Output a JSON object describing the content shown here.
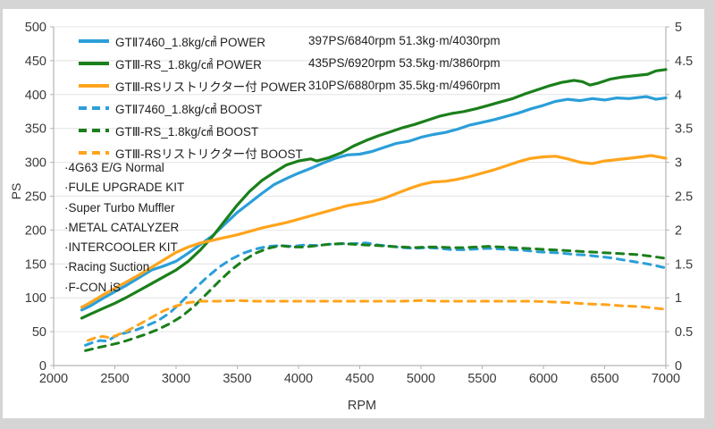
{
  "colors": {
    "background": "#d5d5d5",
    "panel": "#ffffff",
    "grid": "#e4e4e4",
    "axis": "#b3b3b3",
    "tick_text": "#3a3a3a",
    "blue": "#2b9fd8",
    "green": "#1b7f1b",
    "orange": "#ffa41d"
  },
  "chart_data": {
    "type": "line",
    "xlabel": "RPM",
    "ylabel_left": "PS",
    "x_range": [
      2000,
      7000
    ],
    "y_left_range": [
      0,
      500
    ],
    "y_right_range": [
      0,
      5
    ],
    "grid": "horizontal-only",
    "legend_position": "top-left-inside",
    "x_ticks": [
      "2000",
      "2500",
      "3000",
      "3500",
      "4000",
      "4500",
      "5000",
      "5500",
      "6000",
      "6500",
      "7000"
    ],
    "y_left_ticks": [
      "0",
      "50",
      "100",
      "150",
      "200",
      "250",
      "300",
      "350",
      "400",
      "450",
      "500"
    ],
    "y_right_ticks": [
      "0",
      "0.5",
      "1",
      "1.5",
      "2",
      "2.5",
      "3",
      "3.5",
      "4",
      "4.5",
      "5"
    ],
    "annotations": [
      "·4G63 E/G Normal",
      "·FULE UPGRADE KIT",
      "·Super Turbo Muffler",
      "·METAL CATALYZER",
      "·INTERCOOLER KIT",
      "·Racing Suction",
      "·F-CON iS"
    ],
    "series": [
      {
        "name": "gt2-7460-power",
        "label": "GTⅡ7460_1.8kg/㎠ POWER",
        "stats": "397PS/6840rpm 51.3kg·m/4030rpm",
        "color": "#2b9fd8",
        "style": "solid",
        "axis": "left",
        "points": [
          [
            2230,
            82
          ],
          [
            2300,
            88
          ],
          [
            2400,
            99
          ],
          [
            2500,
            109
          ],
          [
            2600,
            119
          ],
          [
            2700,
            130
          ],
          [
            2800,
            141
          ],
          [
            2900,
            147
          ],
          [
            3000,
            154
          ],
          [
            3100,
            166
          ],
          [
            3200,
            179
          ],
          [
            3300,
            192
          ],
          [
            3400,
            209
          ],
          [
            3500,
            226
          ],
          [
            3600,
            240
          ],
          [
            3700,
            254
          ],
          [
            3800,
            267
          ],
          [
            3900,
            276
          ],
          [
            4000,
            284
          ],
          [
            4100,
            291
          ],
          [
            4200,
            299
          ],
          [
            4300,
            306
          ],
          [
            4400,
            311
          ],
          [
            4500,
            312
          ],
          [
            4600,
            316
          ],
          [
            4700,
            322
          ],
          [
            4800,
            328
          ],
          [
            4900,
            331
          ],
          [
            5000,
            337
          ],
          [
            5100,
            341
          ],
          [
            5200,
            344
          ],
          [
            5300,
            349
          ],
          [
            5400,
            355
          ],
          [
            5500,
            359
          ],
          [
            5600,
            363
          ],
          [
            5700,
            368
          ],
          [
            5800,
            373
          ],
          [
            5900,
            379
          ],
          [
            6000,
            384
          ],
          [
            6100,
            390
          ],
          [
            6200,
            393
          ],
          [
            6300,
            391
          ],
          [
            6400,
            394
          ],
          [
            6500,
            392
          ],
          [
            6600,
            395
          ],
          [
            6700,
            394
          ],
          [
            6840,
            397
          ],
          [
            6920,
            393
          ],
          [
            7000,
            395
          ]
        ]
      },
      {
        "name": "gt3-rs-power",
        "label": "GTⅢ-RS_1.8kg/㎠ POWER",
        "stats": "435PS/6920rpm 53.5kg·m/3860rpm",
        "color": "#1b7f1b",
        "style": "solid",
        "axis": "left",
        "points": [
          [
            2230,
            70
          ],
          [
            2300,
            76
          ],
          [
            2400,
            84
          ],
          [
            2500,
            92
          ],
          [
            2600,
            101
          ],
          [
            2700,
            111
          ],
          [
            2800,
            121
          ],
          [
            2900,
            131
          ],
          [
            3000,
            141
          ],
          [
            3100,
            154
          ],
          [
            3200,
            171
          ],
          [
            3300,
            191
          ],
          [
            3400,
            214
          ],
          [
            3500,
            237
          ],
          [
            3600,
            257
          ],
          [
            3700,
            273
          ],
          [
            3800,
            285
          ],
          [
            3900,
            296
          ],
          [
            4000,
            302
          ],
          [
            4100,
            305
          ],
          [
            4150,
            302
          ],
          [
            4250,
            307
          ],
          [
            4350,
            314
          ],
          [
            4450,
            324
          ],
          [
            4550,
            332
          ],
          [
            4650,
            339
          ],
          [
            4750,
            345
          ],
          [
            4850,
            351
          ],
          [
            4950,
            356
          ],
          [
            5050,
            362
          ],
          [
            5150,
            368
          ],
          [
            5250,
            372
          ],
          [
            5350,
            375
          ],
          [
            5450,
            379
          ],
          [
            5550,
            384
          ],
          [
            5650,
            389
          ],
          [
            5750,
            394
          ],
          [
            5850,
            401
          ],
          [
            5950,
            407
          ],
          [
            6050,
            413
          ],
          [
            6150,
            418
          ],
          [
            6250,
            421
          ],
          [
            6320,
            419
          ],
          [
            6380,
            414
          ],
          [
            6450,
            417
          ],
          [
            6550,
            423
          ],
          [
            6650,
            426
          ],
          [
            6750,
            428
          ],
          [
            6850,
            430
          ],
          [
            6920,
            435
          ],
          [
            7000,
            437
          ]
        ]
      },
      {
        "name": "gt3-rs-restrictor-power",
        "label": "GTⅢ-RSリストリクター付 POWER",
        "stats": "310PS/6880rpm 35.5kg·m/4960rpm",
        "color": "#ffa41d",
        "style": "solid",
        "axis": "left",
        "points": [
          [
            2230,
            86
          ],
          [
            2300,
            93
          ],
          [
            2400,
            104
          ],
          [
            2500,
            114
          ],
          [
            2600,
            124
          ],
          [
            2700,
            134
          ],
          [
            2800,
            145
          ],
          [
            2900,
            156
          ],
          [
            3000,
            167
          ],
          [
            3100,
            175
          ],
          [
            3200,
            181
          ],
          [
            3300,
            185
          ],
          [
            3400,
            189
          ],
          [
            3500,
            193
          ],
          [
            3600,
            198
          ],
          [
            3700,
            203
          ],
          [
            3800,
            207
          ],
          [
            3900,
            211
          ],
          [
            4000,
            216
          ],
          [
            4100,
            221
          ],
          [
            4200,
            226
          ],
          [
            4300,
            231
          ],
          [
            4400,
            236
          ],
          [
            4500,
            239
          ],
          [
            4600,
            242
          ],
          [
            4700,
            247
          ],
          [
            4800,
            254
          ],
          [
            4900,
            261
          ],
          [
            5000,
            267
          ],
          [
            5100,
            271
          ],
          [
            5200,
            272
          ],
          [
            5300,
            275
          ],
          [
            5400,
            279
          ],
          [
            5500,
            284
          ],
          [
            5600,
            289
          ],
          [
            5700,
            295
          ],
          [
            5800,
            301
          ],
          [
            5900,
            306
          ],
          [
            6000,
            308
          ],
          [
            6100,
            309
          ],
          [
            6200,
            305
          ],
          [
            6300,
            300
          ],
          [
            6400,
            298
          ],
          [
            6500,
            302
          ],
          [
            6600,
            304
          ],
          [
            6700,
            306
          ],
          [
            6800,
            308
          ],
          [
            6880,
            310
          ],
          [
            7000,
            306
          ]
        ]
      },
      {
        "name": "gt2-7460-boost",
        "label": "GTⅡ7460_1.8kg/㎠ BOOST",
        "color": "#2b9fd8",
        "style": "dashed",
        "axis": "right",
        "points": [
          [
            2260,
            0.3
          ],
          [
            2320,
            0.34
          ],
          [
            2380,
            0.37
          ],
          [
            2440,
            0.36
          ],
          [
            2500,
            0.43
          ],
          [
            2560,
            0.47
          ],
          [
            2620,
            0.5
          ],
          [
            2680,
            0.53
          ],
          [
            2750,
            0.58
          ],
          [
            2850,
            0.66
          ],
          [
            2950,
            0.78
          ],
          [
            3050,
            0.95
          ],
          [
            3150,
            1.13
          ],
          [
            3250,
            1.3
          ],
          [
            3350,
            1.45
          ],
          [
            3450,
            1.57
          ],
          [
            3550,
            1.66
          ],
          [
            3650,
            1.72
          ],
          [
            3750,
            1.76
          ],
          [
            3850,
            1.77
          ],
          [
            3950,
            1.76
          ],
          [
            4050,
            1.78
          ],
          [
            4150,
            1.77
          ],
          [
            4250,
            1.79
          ],
          [
            4350,
            1.8
          ],
          [
            4450,
            1.8
          ],
          [
            4550,
            1.81
          ],
          [
            4650,
            1.78
          ],
          [
            4750,
            1.76
          ],
          [
            4850,
            1.74
          ],
          [
            4950,
            1.73
          ],
          [
            5050,
            1.74
          ],
          [
            5150,
            1.73
          ],
          [
            5250,
            1.71
          ],
          [
            5350,
            1.71
          ],
          [
            5450,
            1.72
          ],
          [
            5550,
            1.73
          ],
          [
            5650,
            1.72
          ],
          [
            5750,
            1.71
          ],
          [
            5850,
            1.7
          ],
          [
            5950,
            1.68
          ],
          [
            6050,
            1.67
          ],
          [
            6150,
            1.66
          ],
          [
            6250,
            1.64
          ],
          [
            6350,
            1.63
          ],
          [
            6450,
            1.61
          ],
          [
            6550,
            1.59
          ],
          [
            6650,
            1.56
          ],
          [
            6750,
            1.53
          ],
          [
            6850,
            1.5
          ],
          [
            6930,
            1.47
          ],
          [
            7000,
            1.44
          ]
        ]
      },
      {
        "name": "gt3-rs-boost",
        "label": "GTⅢ-RS_1.8kg/㎠ BOOST",
        "color": "#1b7f1b",
        "style": "dashed",
        "axis": "right",
        "points": [
          [
            2260,
            0.22
          ],
          [
            2350,
            0.26
          ],
          [
            2450,
            0.3
          ],
          [
            2550,
            0.34
          ],
          [
            2650,
            0.4
          ],
          [
            2750,
            0.46
          ],
          [
            2850,
            0.53
          ],
          [
            2950,
            0.62
          ],
          [
            3050,
            0.73
          ],
          [
            3150,
            0.88
          ],
          [
            3250,
            1.06
          ],
          [
            3350,
            1.24
          ],
          [
            3450,
            1.41
          ],
          [
            3550,
            1.55
          ],
          [
            3650,
            1.66
          ],
          [
            3750,
            1.73
          ],
          [
            3850,
            1.77
          ],
          [
            3950,
            1.75
          ],
          [
            4050,
            1.75
          ],
          [
            4150,
            1.77
          ],
          [
            4250,
            1.79
          ],
          [
            4350,
            1.8
          ],
          [
            4450,
            1.79
          ],
          [
            4550,
            1.78
          ],
          [
            4650,
            1.77
          ],
          [
            4750,
            1.76
          ],
          [
            4850,
            1.75
          ],
          [
            4950,
            1.74
          ],
          [
            5050,
            1.75
          ],
          [
            5150,
            1.75
          ],
          [
            5250,
            1.74
          ],
          [
            5350,
            1.74
          ],
          [
            5450,
            1.75
          ],
          [
            5550,
            1.76
          ],
          [
            5650,
            1.75
          ],
          [
            5750,
            1.74
          ],
          [
            5850,
            1.73
          ],
          [
            5950,
            1.72
          ],
          [
            6050,
            1.71
          ],
          [
            6150,
            1.7
          ],
          [
            6250,
            1.69
          ],
          [
            6350,
            1.68
          ],
          [
            6450,
            1.67
          ],
          [
            6550,
            1.66
          ],
          [
            6650,
            1.65
          ],
          [
            6750,
            1.64
          ],
          [
            6850,
            1.62
          ],
          [
            6930,
            1.6
          ],
          [
            7000,
            1.58
          ]
        ]
      },
      {
        "name": "gt3-rs-restrictor-boost",
        "label": "GTⅢ-RSリストリクター付 BOOST",
        "color": "#ffa41d",
        "style": "dashed",
        "axis": "right",
        "points": [
          [
            2280,
            0.37
          ],
          [
            2340,
            0.41
          ],
          [
            2400,
            0.43
          ],
          [
            2460,
            0.41
          ],
          [
            2520,
            0.45
          ],
          [
            2600,
            0.51
          ],
          [
            2700,
            0.61
          ],
          [
            2800,
            0.71
          ],
          [
            2900,
            0.81
          ],
          [
            3000,
            0.88
          ],
          [
            3100,
            0.93
          ],
          [
            3200,
            0.95
          ],
          [
            3350,
            0.95
          ],
          [
            3500,
            0.96
          ],
          [
            3650,
            0.95
          ],
          [
            3800,
            0.95
          ],
          [
            3950,
            0.95
          ],
          [
            4100,
            0.95
          ],
          [
            4250,
            0.95
          ],
          [
            4400,
            0.95
          ],
          [
            4550,
            0.95
          ],
          [
            4700,
            0.95
          ],
          [
            4850,
            0.95
          ],
          [
            5000,
            0.96
          ],
          [
            5150,
            0.95
          ],
          [
            5300,
            0.95
          ],
          [
            5450,
            0.95
          ],
          [
            5600,
            0.95
          ],
          [
            5750,
            0.95
          ],
          [
            5900,
            0.95
          ],
          [
            6050,
            0.94
          ],
          [
            6200,
            0.93
          ],
          [
            6350,
            0.91
          ],
          [
            6500,
            0.9
          ],
          [
            6650,
            0.88
          ],
          [
            6800,
            0.87
          ],
          [
            6900,
            0.85
          ],
          [
            7000,
            0.83
          ]
        ]
      }
    ]
  }
}
